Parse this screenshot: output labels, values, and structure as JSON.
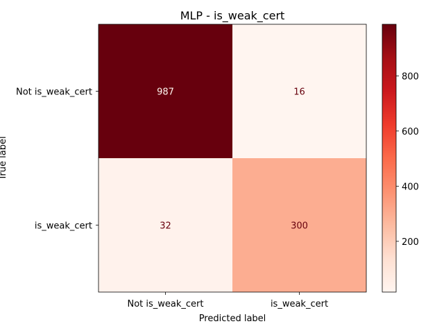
{
  "chart_data": {
    "type": "heatmap",
    "title": "MLP - is_weak_cert",
    "xlabel": "Predicted label",
    "ylabel": "True label",
    "x_categories": [
      "Not is_weak_cert",
      "is_weak_cert"
    ],
    "y_categories": [
      "Not is_weak_cert",
      "is_weak_cert"
    ],
    "values": [
      [
        987,
        16
      ],
      [
        32,
        300
      ]
    ],
    "colormap": "Reds",
    "colorbar": {
      "min": 16,
      "max": 987,
      "ticks": [
        200,
        400,
        600,
        800
      ]
    },
    "grid": false
  }
}
